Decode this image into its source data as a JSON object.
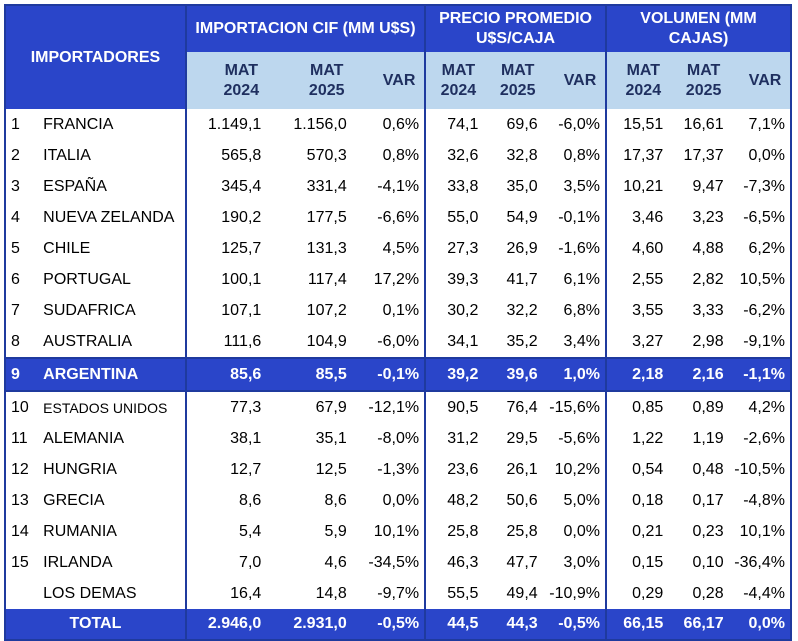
{
  "table": {
    "corner": "IMPORTADORES",
    "groups": [
      "IMPORTACION CIF (MM U$S)",
      "PRECIO PROMEDIO U$S/CAJA",
      "VOLUMEN (MM CAJAS)"
    ],
    "subheaders": [
      "MAT 2024",
      "MAT 2025",
      "VAR",
      "MAT 2024",
      "MAT 2025",
      "VAR",
      "MAT 2024",
      "MAT 2025",
      "VAR"
    ],
    "rows": [
      [
        "1",
        "FRANCIA",
        "1.149,1",
        "1.156,0",
        "0,6%",
        "74,1",
        "69,6",
        "-6,0%",
        "15,51",
        "16,61",
        "7,1%"
      ],
      [
        "2",
        "ITALIA",
        "565,8",
        "570,3",
        "0,8%",
        "32,6",
        "32,8",
        "0,8%",
        "17,37",
        "17,37",
        "0,0%"
      ],
      [
        "3",
        "ESPAÑA",
        "345,4",
        "331,4",
        "-4,1%",
        "33,8",
        "35,0",
        "3,5%",
        "10,21",
        "9,47",
        "-7,3%"
      ],
      [
        "4",
        "NUEVA ZELANDA",
        "190,2",
        "177,5",
        "-6,6%",
        "55,0",
        "54,9",
        "-0,1%",
        "3,46",
        "3,23",
        "-6,5%"
      ],
      [
        "5",
        "CHILE",
        "125,7",
        "131,3",
        "4,5%",
        "27,3",
        "26,9",
        "-1,6%",
        "4,60",
        "4,88",
        "6,2%"
      ],
      [
        "6",
        "PORTUGAL",
        "100,1",
        "117,4",
        "17,2%",
        "39,3",
        "41,7",
        "6,1%",
        "2,55",
        "2,82",
        "10,5%"
      ],
      [
        "7",
        "SUDAFRICA",
        "107,1",
        "107,2",
        "0,1%",
        "30,2",
        "32,2",
        "6,8%",
        "3,55",
        "3,33",
        "-6,2%"
      ],
      [
        "8",
        "AUSTRALIA",
        "111,6",
        "104,9",
        "-6,0%",
        "34,1",
        "35,2",
        "3,4%",
        "3,27",
        "2,98",
        "-9,1%"
      ],
      [
        "9",
        "ARGENTINA",
        "85,6",
        "85,5",
        "-0,1%",
        "39,2",
        "39,6",
        "1,0%",
        "2,18",
        "2,16",
        "-1,1%"
      ],
      [
        "10",
        "ESTADOS UNIDOS",
        "77,3",
        "67,9",
        "-12,1%",
        "90,5",
        "76,4",
        "-15,6%",
        "0,85",
        "0,89",
        "4,2%"
      ],
      [
        "11",
        "ALEMANIA",
        "38,1",
        "35,1",
        "-8,0%",
        "31,2",
        "29,5",
        "-5,6%",
        "1,22",
        "1,19",
        "-2,6%"
      ],
      [
        "12",
        "HUNGRIA",
        "12,7",
        "12,5",
        "-1,3%",
        "23,6",
        "26,1",
        "10,2%",
        "0,54",
        "0,48",
        "-10,5%"
      ],
      [
        "13",
        "GRECIA",
        "8,6",
        "8,6",
        "0,0%",
        "48,2",
        "50,6",
        "5,0%",
        "0,18",
        "0,17",
        "-4,8%"
      ],
      [
        "14",
        "RUMANIA",
        "5,4",
        "5,9",
        "10,1%",
        "25,8",
        "25,8",
        "0,0%",
        "0,21",
        "0,23",
        "10,1%"
      ],
      [
        "15",
        "IRLANDA",
        "7,0",
        "4,6",
        "-34,5%",
        "46,3",
        "47,7",
        "3,0%",
        "0,15",
        "0,10",
        "-36,4%"
      ],
      [
        null,
        "LOS DEMAS",
        "16,4",
        "14,8",
        "-9,7%",
        "55,5",
        "49,4",
        "-10,9%",
        "0,29",
        "0,28",
        "-4,4%"
      ]
    ],
    "total": [
      "TOTAL",
      "2.946,0",
      "2.931,0",
      "-0,5%",
      "44,5",
      "44,3",
      "-0,5%",
      "66,15",
      "66,17",
      "0,0%"
    ]
  }
}
